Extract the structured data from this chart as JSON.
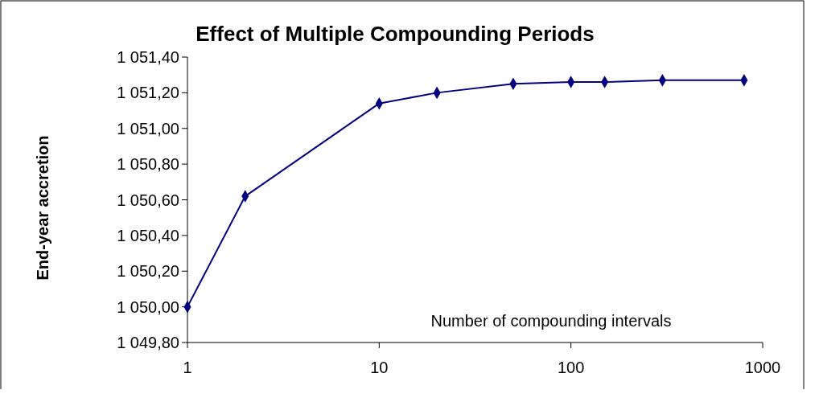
{
  "chart_data": {
    "type": "line",
    "title": "Effect of Multiple Compounding Periods",
    "xlabel": "Number of compounding intervals",
    "ylabel": "End-year accretion",
    "x": [
      1,
      2,
      10,
      20,
      50,
      100,
      150,
      300,
      800
    ],
    "series": [
      {
        "color": "#000080",
        "values": [
          1050.0,
          1050.62,
          1051.14,
          1051.2,
          1051.25,
          1051.26,
          1051.26,
          1051.27,
          1051.27
        ]
      }
    ],
    "log": "x",
    "xlim": [
      1,
      1000
    ],
    "xticks": [
      1,
      10,
      100,
      1000
    ],
    "ylim": [
      1049.8,
      1051.4
    ],
    "yticks": [
      {
        "value": 1049.8,
        "label": "1 049,80"
      },
      {
        "value": 1050.0,
        "label": "1 050,00"
      },
      {
        "value": 1050.2,
        "label": "1 050,20"
      },
      {
        "value": 1050.4,
        "label": "1 050,40"
      },
      {
        "value": 1050.6,
        "label": "1 050,60"
      },
      {
        "value": 1050.8,
        "label": "1 050,80"
      },
      {
        "value": 1051.0,
        "label": "1 051,00"
      },
      {
        "value": 1051.2,
        "label": "1 051,20"
      },
      {
        "value": 1051.4,
        "label": "1 051,40"
      }
    ],
    "grid": false,
    "marker": "diamond",
    "line_style": "solid"
  }
}
